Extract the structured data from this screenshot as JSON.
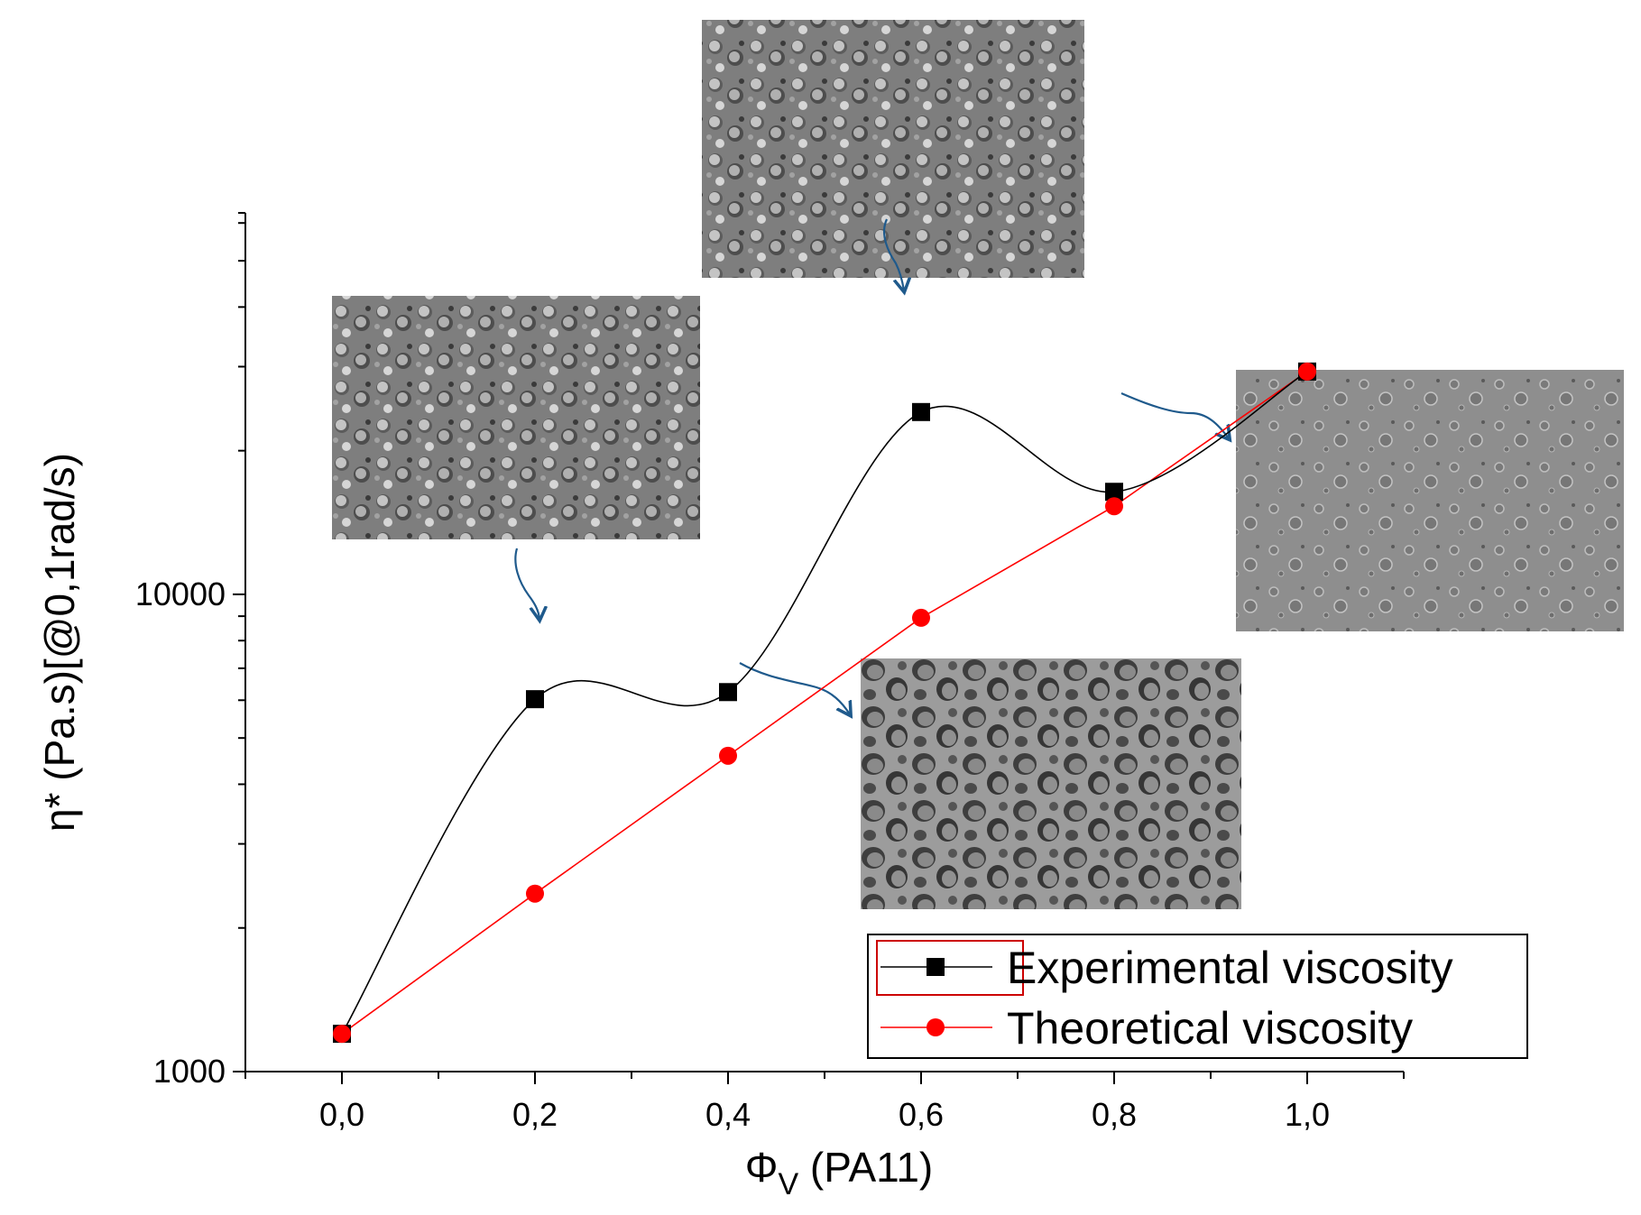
{
  "chart_data": {
    "type": "line",
    "xlabel_symbol": "Φ",
    "xlabel_subscript": "V",
    "xlabel_rest": " (PA11)",
    "ylabel": "η* (Pa.s)[@0,1rad/s)",
    "xlim": [
      -0.1,
      1.1
    ],
    "ylim": [
      1000,
      63000
    ],
    "yscale": "log",
    "x_ticks": [
      0.0,
      0.2,
      0.4,
      0.6,
      0.8,
      1.0
    ],
    "x_tick_labels": [
      "0,0",
      "0,2",
      "0,4",
      "0,6",
      "0,8",
      "1,0"
    ],
    "y_ticks": [
      1000,
      10000
    ],
    "y_tick_labels": [
      "1000",
      "10000"
    ],
    "grid": false,
    "legend_position": "bottom-right",
    "series": [
      {
        "name": "Experimental viscosity",
        "color": "#000000",
        "marker": "square",
        "smooth": true,
        "x": [
          0.0,
          0.2,
          0.4,
          0.6,
          0.8,
          1.0
        ],
        "y": [
          1200,
          6030,
          6240,
          24100,
          16400,
          29300
        ]
      },
      {
        "name": "Theoretical viscosity",
        "color": "#ff0000",
        "marker": "circle",
        "smooth": false,
        "x": [
          0.0,
          0.2,
          0.4,
          0.6,
          0.8,
          1.0
        ],
        "y": [
          1200,
          2360,
          4590,
          8930,
          15300,
          29300
        ]
      }
    ]
  },
  "colors": {
    "arrow": "#1f5a8c",
    "micrograph": "#8a8a8a",
    "legend_border": "#cc0000"
  }
}
